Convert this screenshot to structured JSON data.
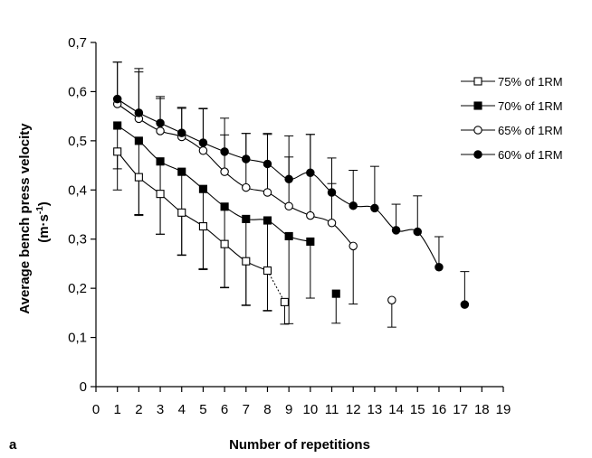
{
  "chart_data": {
    "type": "line",
    "panel_label": "a",
    "title": "",
    "xlabel": "Number of repetitions",
    "ylabel_main": "Average bench press velocity",
    "ylabel_unit_base": "(m·s",
    "ylabel_unit_sup": "-1",
    "ylabel_unit_close": ")",
    "xlim": [
      0,
      19
    ],
    "ylim": [
      0,
      0.7
    ],
    "xticks": [
      0,
      1,
      2,
      3,
      4,
      5,
      6,
      7,
      8,
      9,
      10,
      11,
      12,
      13,
      14,
      15,
      16,
      17,
      18,
      19
    ],
    "yticks": [
      {
        "value": 0,
        "label": "0"
      },
      {
        "value": 0.1,
        "label": "0,1"
      },
      {
        "value": 0.2,
        "label": "0,2"
      },
      {
        "value": 0.3,
        "label": "0,3"
      },
      {
        "value": 0.4,
        "label": "0,4"
      },
      {
        "value": 0.5,
        "label": "0,5"
      },
      {
        "value": 0.6,
        "label": "0,6"
      },
      {
        "value": 0.7,
        "label": "0,7"
      }
    ],
    "grid": false,
    "legend_position": "top-right",
    "series": [
      {
        "name": "75% of 1RM",
        "marker": "square-open",
        "x": [
          1,
          2,
          3,
          4,
          5,
          6,
          7,
          8,
          8.8
        ],
        "y": [
          0.478,
          0.426,
          0.392,
          0.354,
          0.326,
          0.29,
          0.255,
          0.236,
          0.172
        ],
        "sd": [
          0.078,
          0.078,
          0.082,
          0.086,
          0.088,
          0.088,
          0.09,
          0.082,
          0.045
        ],
        "sd_direction": [
          "down",
          "down",
          "down",
          "down",
          "down",
          "down",
          "down",
          "down",
          "down"
        ],
        "line_to_index": 7,
        "dashed_last_segment": true
      },
      {
        "name": "70% of 1RM",
        "marker": "square-filled",
        "x": [
          1,
          2,
          3,
          4,
          5,
          6,
          7,
          8,
          9,
          10,
          11.2
        ],
        "y": [
          0.531,
          0.5,
          0.458,
          0.437,
          0.402,
          0.366,
          0.341,
          0.338,
          0.306,
          0.295,
          0.189
        ],
        "sd": [
          0.088,
          0.15,
          0.148,
          0.17,
          0.162,
          0.165,
          0.175,
          0.183,
          0.178,
          0.115,
          0.06
        ],
        "sd_direction": [
          "down",
          "down",
          "down",
          "down",
          "down",
          "down",
          "down",
          "down",
          "down",
          "down",
          "down"
        ],
        "line_to_index": 9,
        "dashed_last_segment": false
      },
      {
        "name": "65% of 1RM",
        "marker": "circle-open",
        "x": [
          1,
          2,
          3,
          4,
          5,
          6,
          7,
          8,
          9,
          10,
          11,
          12,
          13.8
        ],
        "y": [
          0.575,
          0.545,
          0.52,
          0.508,
          0.48,
          0.437,
          0.405,
          0.395,
          0.367,
          0.348,
          0.333,
          0.286,
          0.176
        ],
        "sd": [
          0.085,
          0.095,
          0.07,
          0.06,
          0.085,
          0.075,
          0.11,
          0.12,
          0.1,
          0.165,
          0.08,
          0.118,
          0.055
        ],
        "sd_direction": [
          "up",
          "up",
          "up",
          "up",
          "up",
          "up",
          "up",
          "up",
          "up",
          "up",
          "up",
          "down",
          "down"
        ],
        "line_to_index": 11,
        "dashed_last_segment": false
      },
      {
        "name": "60% of 1RM",
        "marker": "circle-filled",
        "x": [
          1,
          2,
          3,
          4,
          5,
          6,
          7,
          8,
          9,
          10,
          11,
          12,
          13,
          14,
          15,
          16,
          17.2
        ],
        "y": [
          0.585,
          0.557,
          0.536,
          0.516,
          0.496,
          0.478,
          0.463,
          0.453,
          0.422,
          0.435,
          0.395,
          0.368,
          0.363,
          0.318,
          0.315,
          0.243,
          0.167
        ],
        "sd": [
          0.075,
          0.09,
          0.05,
          0.05,
          0.07,
          0.068,
          0.052,
          0.06,
          0.088,
          0.078,
          0.07,
          0.072,
          0.085,
          0.053,
          0.073,
          0.062,
          0.067
        ],
        "sd_direction": [
          "up",
          "up",
          "up",
          "up",
          "up",
          "up",
          "up",
          "up",
          "up",
          "up",
          "up",
          "up",
          "up",
          "up",
          "up",
          "up",
          "up"
        ],
        "line_to_index": 15,
        "dashed_last_segment": false
      }
    ]
  }
}
